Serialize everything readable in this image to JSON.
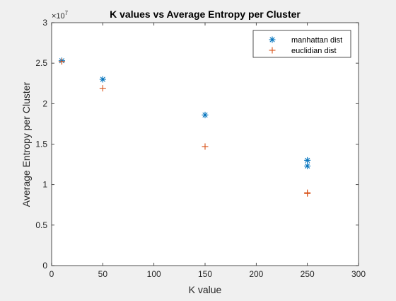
{
  "chart_data": {
    "type": "scatter",
    "title": "K values vs Average Entropy per Cluster",
    "xlabel": "K value",
    "ylabel": "Average Entropy per Cluster",
    "xlim": [
      0,
      300
    ],
    "ylim": [
      0,
      3
    ],
    "y_exponent_label": "×10",
    "y_exponent_power": "7",
    "xticks": [
      0,
      50,
      100,
      150,
      200,
      250,
      300
    ],
    "xtick_labels": [
      "0",
      "50",
      "100",
      "150",
      "200",
      "250",
      "300"
    ],
    "yticks": [
      0,
      0.5,
      1,
      1.5,
      2,
      2.5,
      3
    ],
    "ytick_labels": [
      "0",
      "0.5",
      "1",
      "1.5",
      "2",
      "2.5",
      "3"
    ],
    "grid": false,
    "legend_position": "top-right",
    "series": [
      {
        "name": "manhattan dist",
        "marker": "*",
        "color": "#0072BD",
        "x": [
          10,
          50,
          150,
          250,
          250
        ],
        "y": [
          2.53,
          2.3,
          1.86,
          1.3,
          1.23
        ]
      },
      {
        "name": "euclidian dist",
        "marker": "+",
        "color": "#D95319",
        "x": [
          10,
          50,
          150,
          250,
          250
        ],
        "y": [
          2.52,
          2.19,
          1.47,
          0.9,
          0.89
        ]
      }
    ]
  }
}
